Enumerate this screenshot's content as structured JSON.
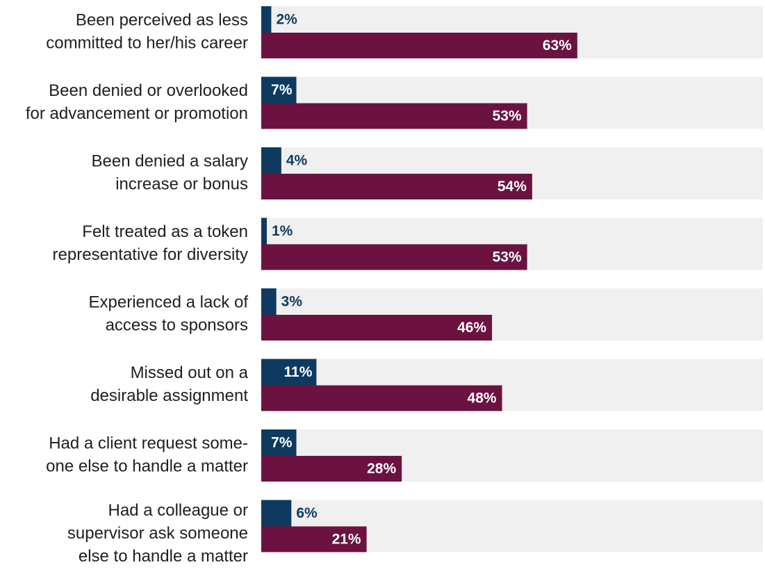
{
  "chart_data": {
    "type": "bar",
    "orientation": "horizontal",
    "categories": [
      [
        "Been perceived as less",
        "committed to her/his career"
      ],
      [
        "Been denied or overlooked",
        "for advancement or promotion"
      ],
      [
        "Been denied a salary",
        "increase or bonus"
      ],
      [
        "Felt treated as a token",
        "representative for diversity"
      ],
      [
        "Experienced a lack of",
        "access to sponsors"
      ],
      [
        "Missed out on a",
        "desirable assignment"
      ],
      [
        "Had a client request some-",
        "one else to handle a matter"
      ],
      [
        "Had a colleague or",
        "supervisor ask someone",
        "else to handle a matter"
      ]
    ],
    "series": [
      {
        "values": [
          2,
          7,
          4,
          1,
          3,
          11,
          7,
          6
        ],
        "labels": [
          "2%",
          "7%",
          "4%",
          "1%",
          "3%",
          "11%",
          "7%",
          "6%"
        ],
        "color": "#0f3a5f"
      },
      {
        "values": [
          63,
          53,
          54,
          53,
          46,
          48,
          28,
          21
        ],
        "labels": [
          "63%",
          "53%",
          "54%",
          "53%",
          "46%",
          "48%",
          "28%",
          "21%"
        ],
        "color": "#6b1240"
      }
    ],
    "xlim": [
      0,
      100
    ],
    "background_track_color": "#f0f0f0",
    "grid": false,
    "legend": "none"
  }
}
